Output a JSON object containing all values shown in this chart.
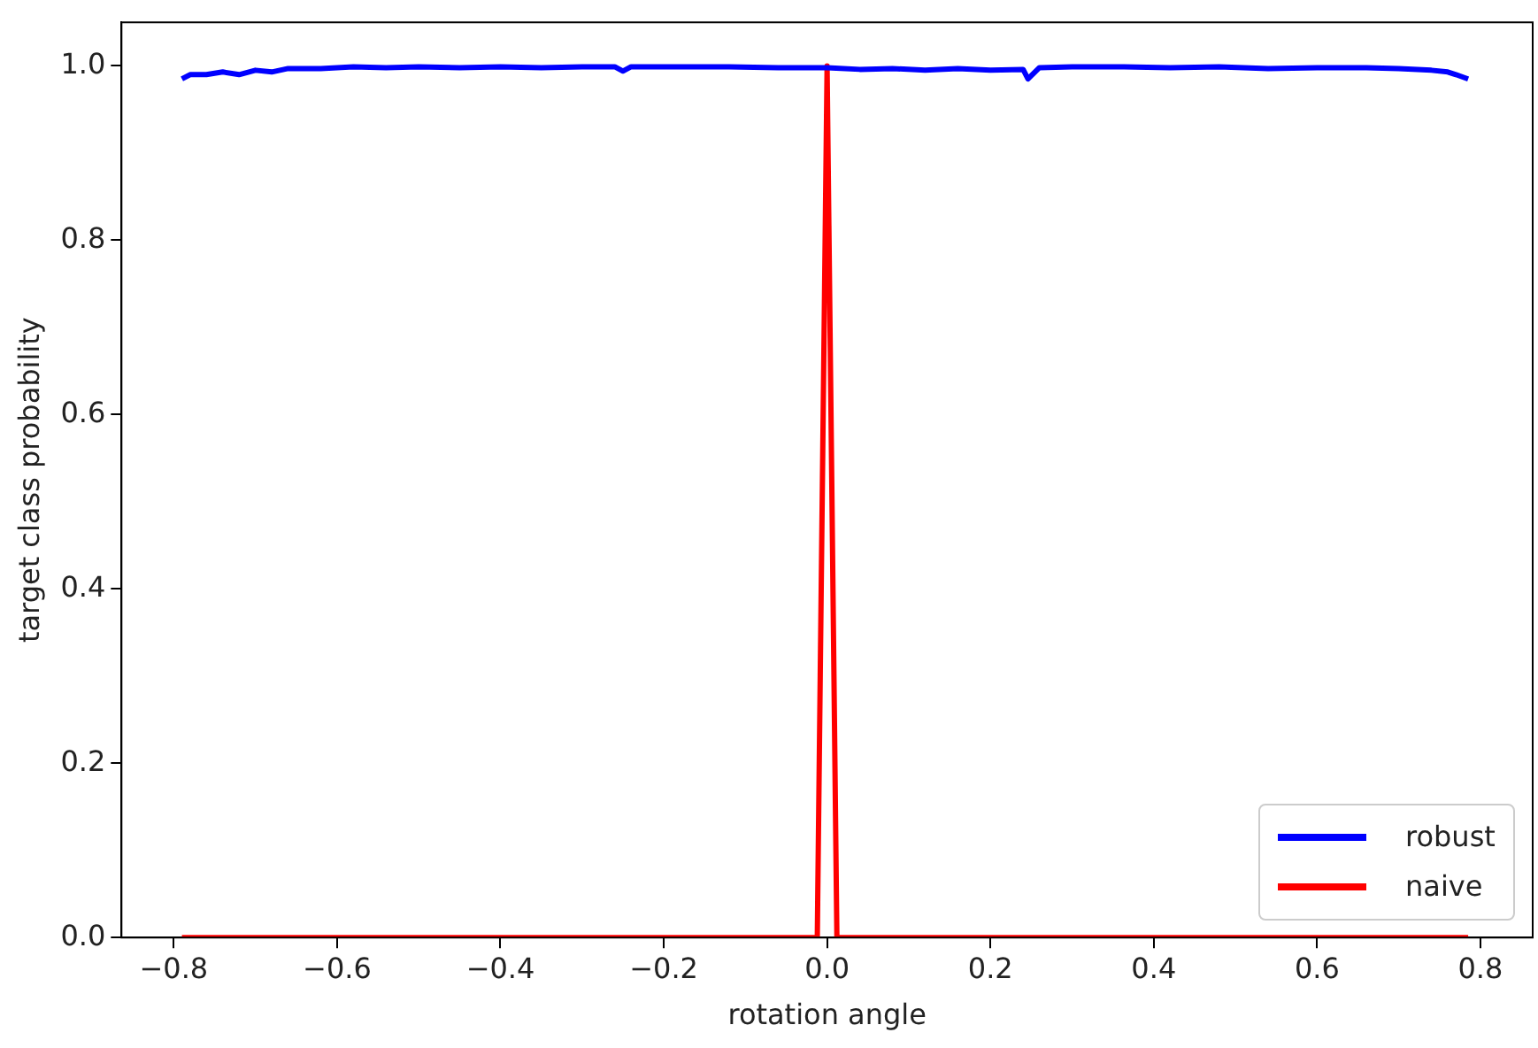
{
  "chart_data": {
    "type": "line",
    "xlabel": "rotation angle",
    "ylabel": "target class probability",
    "xlim": [
      -0.864,
      0.864
    ],
    "ylim": [
      0,
      1.05
    ],
    "xticks": [
      {
        "value": -0.8,
        "label": "−0.8"
      },
      {
        "value": -0.6,
        "label": "−0.6"
      },
      {
        "value": -0.4,
        "label": "−0.4"
      },
      {
        "value": -0.2,
        "label": "−0.2"
      },
      {
        "value": 0,
        "label": "0.0"
      },
      {
        "value": 0.2,
        "label": "0.2"
      },
      {
        "value": 0.4,
        "label": "0.4"
      },
      {
        "value": 0.6,
        "label": "0.6"
      },
      {
        "value": 0.8,
        "label": "0.8"
      }
    ],
    "yticks": [
      {
        "value": 0,
        "label": "0.0"
      },
      {
        "value": 0.2,
        "label": "0.2"
      },
      {
        "value": 0.4,
        "label": "0.4"
      },
      {
        "value": 0.6,
        "label": "0.6"
      },
      {
        "value": 0.8,
        "label": "0.8"
      },
      {
        "value": 1,
        "label": "1.0"
      }
    ],
    "grid": false,
    "legend": "bottom right",
    "marker": "none",
    "line_style": "solid",
    "series": [
      {
        "name": "robust",
        "color": "#0000ff",
        "x": [
          -0.79,
          -0.78,
          -0.76,
          -0.74,
          -0.72,
          -0.7,
          -0.68,
          -0.66,
          -0.62,
          -0.58,
          -0.54,
          -0.5,
          -0.45,
          -0.4,
          -0.35,
          -0.3,
          -0.26,
          -0.25,
          -0.24,
          -0.18,
          -0.12,
          -0.06,
          0,
          0.04,
          0.08,
          0.12,
          0.16,
          0.2,
          0.24,
          0.246,
          0.26,
          0.3,
          0.36,
          0.42,
          0.48,
          0.54,
          0.6,
          0.66,
          0.7,
          0.74,
          0.76,
          0.77,
          0.785
        ],
        "values": [
          0.985,
          0.99,
          0.99,
          0.993,
          0.99,
          0.995,
          0.993,
          0.997,
          0.997,
          0.999,
          0.998,
          0.999,
          0.998,
          0.999,
          0.998,
          0.999,
          0.999,
          0.994,
          0.999,
          0.999,
          0.999,
          0.998,
          0.998,
          0.996,
          0.997,
          0.995,
          0.997,
          0.995,
          0.996,
          0.985,
          0.998,
          0.999,
          0.999,
          0.998,
          0.999,
          0.997,
          0.998,
          0.998,
          0.997,
          0.995,
          0.993,
          0.99,
          0.985
        ]
      },
      {
        "name": "naive",
        "color": "#ff0000",
        "x": [
          -0.79,
          -0.012,
          0,
          0.012,
          0.785
        ],
        "values": [
          0,
          0,
          1,
          0,
          0
        ]
      }
    ]
  }
}
